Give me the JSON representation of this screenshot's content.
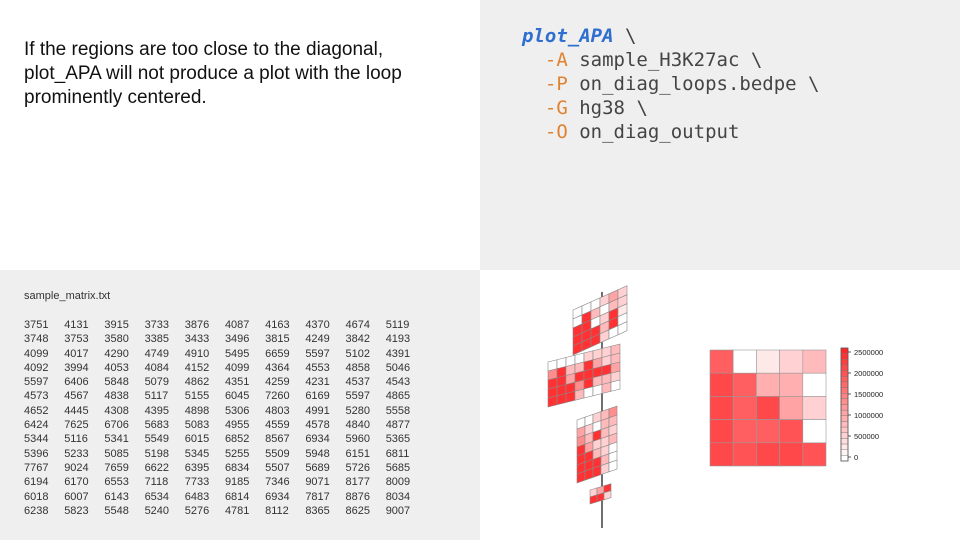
{
  "description": "If the regions are too close to the diagonal, plot_APA will not produce a plot with the loop prominently centered.",
  "command": {
    "name": "plot_APA",
    "continuation": "\\",
    "args": [
      {
        "flag": "-A",
        "value": "sample_H3K27ac",
        "cont": "\\"
      },
      {
        "flag": "-P",
        "value": "on_diag_loops.bedpe",
        "cont": "\\"
      },
      {
        "flag": "-G",
        "value": "hg38",
        "cont": "\\"
      },
      {
        "flag": "-O",
        "value": "on_diag_output",
        "cont": ""
      }
    ]
  },
  "matrix_file": {
    "filename": "sample_matrix.txt",
    "rows": [
      [
        3751,
        4131,
        3915,
        3733,
        3876,
        4087,
        4163,
        4370,
        4674,
        5119
      ],
      [
        3748,
        3753,
        3580,
        3385,
        3433,
        3496,
        3815,
        4249,
        3842,
        4193
      ],
      [
        4099,
        4017,
        4290,
        4749,
        4910,
        5495,
        6659,
        5597,
        5102,
        4391
      ],
      [
        4092,
        3994,
        4053,
        4084,
        4152,
        4099,
        4364,
        4553,
        4858,
        5046
      ],
      [
        5597,
        6406,
        5848,
        5079,
        4862,
        4351,
        4259,
        4231,
        4537,
        4543
      ],
      [
        4573,
        4567,
        4838,
        5117,
        5155,
        6045,
        7260,
        6169,
        5597,
        4865
      ],
      [
        4652,
        4445,
        4308,
        4395,
        4898,
        5306,
        4803,
        4991,
        5280,
        5558
      ],
      [
        6424,
        7625,
        6706,
        5683,
        5083,
        4955,
        4559,
        4578,
        4840,
        4877
      ],
      [
        5344,
        5116,
        5341,
        5549,
        6015,
        6852,
        8567,
        6934,
        5960,
        5365
      ],
      [
        5396,
        5233,
        5085,
        5198,
        5345,
        5255,
        5509,
        5948,
        6151,
        6811
      ],
      [
        7767,
        9024,
        7659,
        6622,
        6395,
        6834,
        5507,
        5689,
        5726,
        5685
      ],
      [
        6194,
        6170,
        6553,
        7118,
        7733,
        9185,
        7346,
        9071,
        8177,
        8009
      ],
      [
        6018,
        6007,
        6143,
        6534,
        6483,
        6814,
        6934,
        7817,
        8876,
        8034
      ],
      [
        6238,
        5823,
        5548,
        5240,
        5276,
        4781,
        8112,
        8365,
        8625,
        9007
      ]
    ]
  },
  "apa_heatmap": {
    "levels": [
      [
        0.7,
        0.0,
        0.1,
        0.2,
        0.3
      ],
      [
        0.8,
        0.7,
        0.35,
        0.35,
        0.0
      ],
      [
        0.8,
        0.7,
        0.8,
        0.4,
        0.2
      ],
      [
        0.8,
        0.7,
        0.7,
        0.75,
        0.0
      ],
      [
        0.8,
        0.75,
        0.8,
        0.8,
        0.75
      ]
    ],
    "colorbar_ticks": [
      "2500000",
      "2000000",
      "1500000",
      "1000000",
      "500000",
      "0"
    ],
    "colors": {
      "high": "#e41a1c",
      "low": "#ffffff"
    }
  }
}
